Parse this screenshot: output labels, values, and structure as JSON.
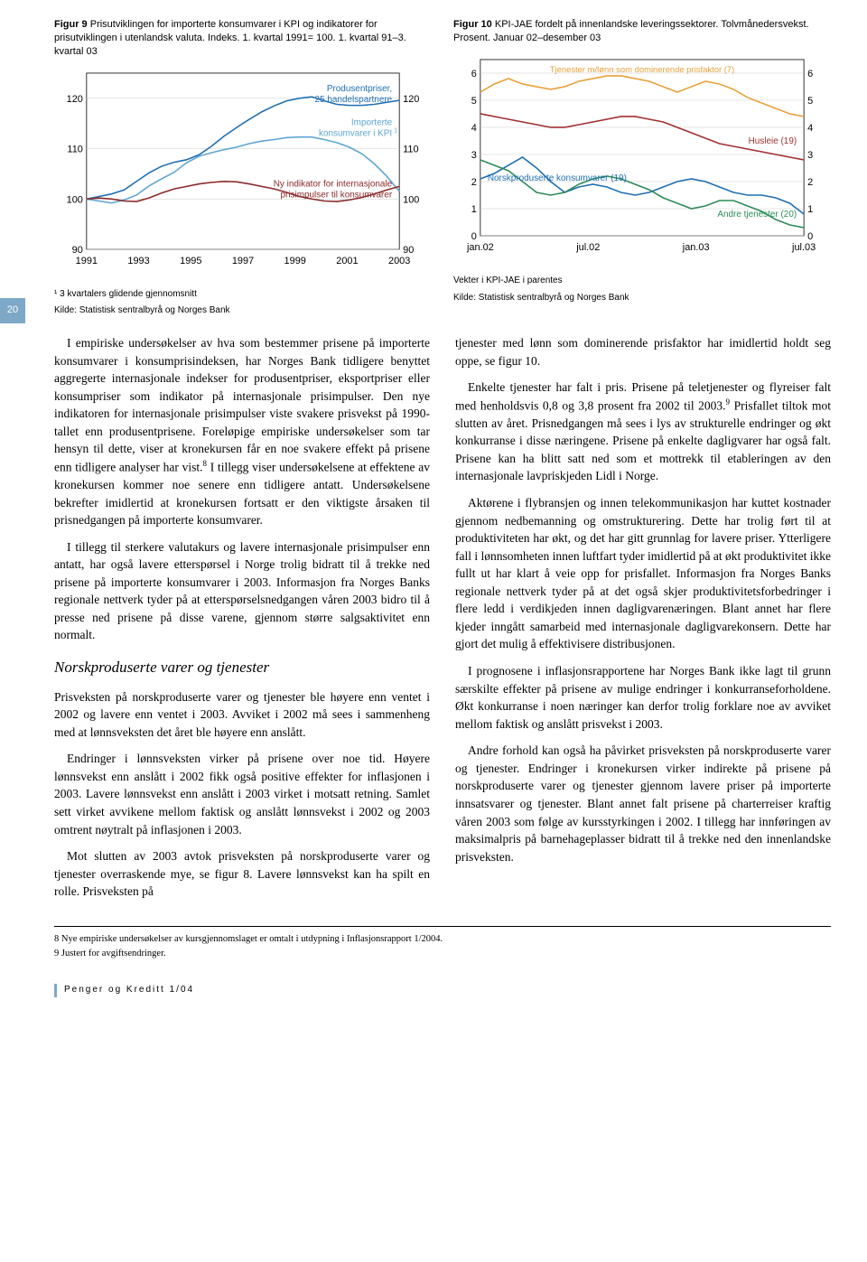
{
  "page_number": "20",
  "figure9": {
    "title_bold": "Figur 9",
    "title_rest": " Prisutviklingen for importerte konsumvarer i KPI og indikatorer for prisutviklingen i utenlandsk valuta. Indeks. 1. kvartal 1991= 100. 1. kvartal 91–3. kvartal 03",
    "x_ticks": [
      "1991",
      "1993",
      "1995",
      "1997",
      "1999",
      "2001",
      "2003"
    ],
    "y_ticks": [
      "90",
      "100",
      "110",
      "120"
    ],
    "y_min": 90,
    "y_max": 125,
    "label1_a": "Produsentpriser,",
    "label1_b": "25 handelspartnere",
    "label2_a": "Importerte",
    "label2_b": "konsumvarer i KPI",
    "label2_sup": "1",
    "label3_a": "Ny indikator for internasjonale",
    "label3_b": "prisimpulser til konsumvarer",
    "color_prod": "#1f6fb2",
    "color_imp": "#5ea6d4",
    "color_ind": "#8b2a2a",
    "series_producer": [
      100,
      100.5,
      101,
      101.8,
      103.5,
      105.2,
      106.5,
      107.3,
      107.8,
      108.8,
      110.5,
      112.5,
      114.2,
      115.8,
      117.3,
      118.5,
      119.5,
      120,
      120.3,
      119.5,
      118.8,
      118.6,
      118.6,
      118.8,
      119.2,
      119.6
    ],
    "series_imported": [
      100,
      99.6,
      99.2,
      99.8,
      100.8,
      102.6,
      104.0,
      105.3,
      107.2,
      108.5,
      109.2,
      109.8,
      110.3,
      111.0,
      111.5,
      111.8,
      112.2,
      112.3,
      112.3,
      111.8,
      111.2,
      110.3,
      109.0,
      107.0,
      104.5,
      101.5
    ],
    "series_indicator": [
      100,
      100.2,
      100.0,
      99.6,
      99.5,
      100.2,
      101.2,
      102.0,
      102.5,
      103.0,
      103.3,
      103.5,
      103.4,
      103.0,
      102.5,
      102.0,
      101.3,
      100.5,
      100.0,
      99.6,
      99.5,
      99.8,
      100.3,
      101.0,
      101.8,
      102.5
    ],
    "note1": "¹ 3 kvartalers glidende gjennomsnitt",
    "source": "Kilde: Statistisk sentralbyrå og Norges Bank"
  },
  "figure10": {
    "title_bold": "Figur 10",
    "title_rest": " KPI-JAE fordelt på innenlandske leveringssektorer. Tolvmånedersvekst. Prosent. Januar 02–desember 03",
    "x_ticks": [
      "jan.02",
      "jul.02",
      "jan.03",
      "jul.03"
    ],
    "y_ticks": [
      "0",
      "1",
      "2",
      "3",
      "4",
      "5",
      "6"
    ],
    "y_min": 0,
    "y_max": 6.5,
    "label_tjenester": "Tjenester m/lønn som dominerende prisfaktor (7)",
    "label_husleie": "Husleie (19)",
    "label_norsk": "Norskproduserte konsumvarer (19)",
    "label_andre": "Andre tjenester (20)",
    "color_tjenester": "#e8a23a",
    "color_husleie": "#a03030",
    "color_norsk": "#1f6fb2",
    "color_andre": "#2e8b57",
    "series_tjenester": [
      5.3,
      5.6,
      5.8,
      5.6,
      5.5,
      5.4,
      5.5,
      5.7,
      5.8,
      5.9,
      5.9,
      5.8,
      5.7,
      5.5,
      5.3,
      5.5,
      5.7,
      5.6,
      5.4,
      5.1,
      4.9,
      4.7,
      4.5,
      4.4
    ],
    "series_husleie": [
      4.5,
      4.4,
      4.3,
      4.2,
      4.1,
      4.0,
      4.0,
      4.1,
      4.2,
      4.3,
      4.4,
      4.4,
      4.3,
      4.2,
      4.0,
      3.8,
      3.6,
      3.4,
      3.3,
      3.2,
      3.1,
      3.0,
      2.9,
      2.8
    ],
    "series_norsk": [
      2.1,
      2.3,
      2.6,
      2.9,
      2.5,
      2.0,
      1.6,
      1.8,
      1.9,
      1.8,
      1.6,
      1.5,
      1.6,
      1.8,
      2.0,
      2.1,
      2.0,
      1.8,
      1.6,
      1.5,
      1.5,
      1.4,
      1.2,
      0.8
    ],
    "series_andre": [
      2.8,
      2.6,
      2.4,
      2.0,
      1.6,
      1.5,
      1.6,
      1.9,
      2.1,
      2.2,
      2.1,
      1.9,
      1.7,
      1.4,
      1.2,
      1.0,
      1.1,
      1.3,
      1.3,
      1.1,
      0.9,
      0.6,
      0.4,
      0.3
    ],
    "note_weights": "Vekter i KPI-JAE i parentes",
    "source": "Kilde: Statistisk sentralbyrå og Norges Bank"
  },
  "body": {
    "left_p1": "I empiriske undersøkelser av hva som bestemmer prisene på importerte konsumvarer i konsumprisindeksen, har Norges Bank tidligere benyttet aggregerte internasjonale indekser for produsentpriser, eksportpriser eller konsumpriser som indikator på internasjonale prisimpulser. Den nye indikatoren for internasjonale prisimpulser viste svakere prisvekst på 1990-tallet enn produsentprisene. Foreløpige empiriske undersøkelser som tar hensyn til dette, viser at kronekursen får en noe svakere effekt på prisene enn tidligere analyser har vist.",
    "left_p1_sup": "8",
    "left_p1_tail": " I tillegg viser undersøkelsene at effektene av kronekursen kommer noe senere enn tidligere antatt. Undersøkelsene bekrefter imidlertid at kronekursen fortsatt er den viktigste årsaken til prisnedgangen på importerte konsumvarer.",
    "left_p2": "I tillegg til sterkere valutakurs og lavere internasjonale prisimpulser enn antatt, har også lavere etterspørsel i Norge trolig bidratt til å trekke ned prisene på importerte konsumvarer i 2003. Informasjon fra Norges Banks regionale nettverk tyder på at etterspørselsnedgangen våren 2003 bidro til å presse ned prisene på disse varene, gjennom større salgsaktivitet enn normalt.",
    "left_h": "Norskproduserte varer og tjenester",
    "left_p3": "Prisveksten på norskproduserte varer og tjenester ble høyere enn ventet i 2002 og lavere enn ventet i 2003. Avviket i 2002 må sees i sammenheng med at lønnsveksten det året ble høyere enn anslått.",
    "left_p4": "Endringer i lønnsveksten virker på prisene over noe tid. Høyere lønnsvekst enn anslått i 2002 fikk også positive effekter for inflasjonen i 2003. Lavere lønnsvekst enn anslått i 2003 virket i motsatt retning. Samlet sett virket avvikene mellom faktisk og anslått lønnsvekst i 2002 og 2003 omtrent nøytralt på inflasjonen i 2003.",
    "left_p5": "Mot slutten av 2003 avtok prisveksten på norskproduserte varer og tjenester overraskende mye, se figur 8. Lavere lønnsvekst kan ha spilt en rolle. Prisveksten på",
    "right_p1": "tjenester med lønn som dominerende prisfaktor har imidlertid holdt seg oppe, se figur 10.",
    "right_p2a": "Enkelte tjenester har falt i pris. Prisene på teletjenester og flyreiser falt med henholdsvis 0,8 og 3,8 prosent fra 2002 til 2003.",
    "right_p2_sup": "9",
    "right_p2b": " Prisfallet tiltok mot slutten av året. Prisnedgangen må sees i lys av strukturelle endringer og økt konkurranse i disse næringene. Prisene på enkelte dagligvarer har også falt. Prisene kan ha blitt satt ned som et mottrekk til etableringen av den internasjonale lavpriskjeden Lidl i Norge.",
    "right_p3": "Aktørene i flybransjen og innen telekommunikasjon har kuttet kostnader gjennom nedbemanning og omstrukturering. Dette har trolig ført til at produktiviteten har økt, og det har gitt grunnlag for lavere priser. Ytterligere fall i lønnsomheten innen luftfart tyder imidlertid på at økt produktivitet ikke fullt ut har klart å veie opp for prisfallet. Informasjon fra Norges Banks regionale nettverk tyder på at det også skjer produktivitetsforbedringer i flere ledd i verdikjeden innen dagligvarenæringen. Blant annet har flere kjeder inngått samarbeid med internasjonale dagligvarekonsern. Dette har gjort det mulig å effektivisere distribusjonen.",
    "right_p4": "I prognosene i inflasjonsrapportene har Norges Bank ikke lagt til grunn særskilte effekter på prisene av mulige endringer i konkurranseforholdene. Økt konkurranse i noen næringer kan derfor trolig forklare noe av avviket mellom faktisk og anslått prisvekst i 2003.",
    "right_p5": "Andre forhold kan også ha påvirket prisveksten på norskproduserte varer og tjenester. Endringer i kronekursen virker indirekte på prisene på norskproduserte varer og tjenester gjennom lavere priser på importerte innsatsvarer og tjenester. Blant annet falt prisene på charterreiser kraftig våren 2003 som følge av kursstyrkingen i 2002. I tillegg har innføringen av maksimalpris på barnehageplasser bidratt til å trekke ned den innenlandske prisveksten."
  },
  "footnotes": {
    "f8": "8 Nye empiriske undersøkelser av kursgjennomslaget er omtalt i utdypning i Inflasjonsrapport 1/2004.",
    "f9": "9 Justert for avgiftsendringer."
  },
  "footer": "Penger og Kreditt 1/04"
}
